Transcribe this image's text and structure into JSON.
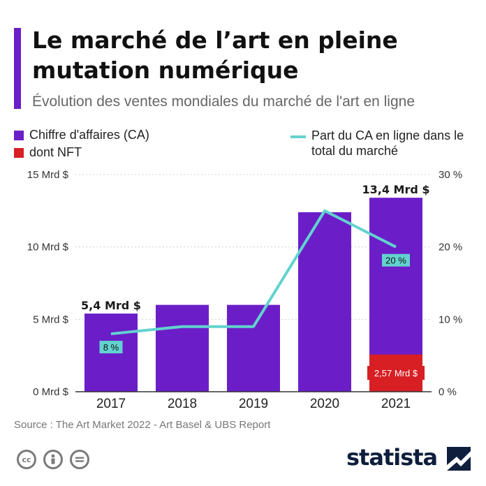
{
  "header": {
    "title": "Le marché de l’art en pleine mutation numérique",
    "subtitle": "Évolution des ventes mondiales du marché de l'art en ligne"
  },
  "legend": {
    "ca": "Chiffre d'affaires (CA)",
    "nft": "dont NFT",
    "share": "Part du CA en ligne dans le total du marché"
  },
  "chart_data": {
    "type": "bar",
    "categories": [
      "2017",
      "2018",
      "2019",
      "2020",
      "2021"
    ],
    "series": [
      {
        "name": "Chiffre d'affaires (CA)",
        "values": [
          5.4,
          6.0,
          6.0,
          12.4,
          13.4
        ],
        "color": "#6b1ec8"
      },
      {
        "name": "dont NFT",
        "values": [
          0,
          0,
          0,
          0,
          2.57
        ],
        "color": "#d71f24"
      },
      {
        "name": "Part du CA en ligne dans le total du marché",
        "type": "line",
        "axis": "right",
        "values": [
          8,
          9,
          9,
          25,
          20
        ],
        "color": "#62d3cf"
      }
    ],
    "y_left": {
      "ylim": [
        0,
        15
      ],
      "ticks": [
        0,
        5,
        10,
        15
      ],
      "tick_labels": [
        "0 Mrd $",
        "5 Mrd $",
        "10 Mrd $",
        "15 Mrd $"
      ]
    },
    "y_right": {
      "ylim": [
        0,
        30
      ],
      "ticks": [
        0,
        10,
        20,
        30
      ],
      "tick_labels": [
        "0 %",
        "10 %",
        "20 %",
        "30 %"
      ]
    },
    "data_labels": {
      "bars": [
        "5,4 Mrd $",
        "",
        "",
        "",
        "13,4 Mrd $"
      ],
      "line": [
        "8 %",
        "",
        "",
        "",
        "20 %"
      ],
      "nft": [
        "",
        "",
        "",
        "",
        "2,57 Mrd $"
      ]
    },
    "grid": true,
    "legend_position": "top"
  },
  "footer": {
    "source": "Source : The Art Market 2022 - Art Basel & UBS Report",
    "brand": "statista",
    "license_icons": [
      "cc-icon",
      "by-icon",
      "nd-icon"
    ]
  }
}
